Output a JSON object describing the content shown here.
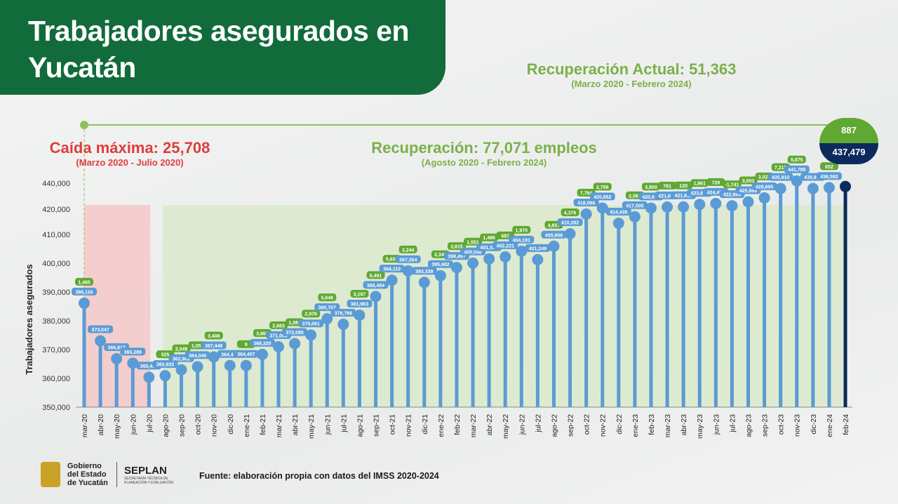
{
  "title": "Trabajadores asegurados en Yucatán",
  "recovery_actual": {
    "label": "Recuperación Actual: 51,363",
    "period": "(Marzo 2020 - Febrero 2024)"
  },
  "max_drop": {
    "label": "Caída máxima: 25,708",
    "period": "(Marzo 2020 - Julio 2020)"
  },
  "recovery": {
    "label": "Recuperación: 77,071 empleos",
    "period": "(Agosto 2020 - Febrero 2024)"
  },
  "last_bubble": {
    "change": "887",
    "value": "437,479"
  },
  "source": "Fuente: elaboración propia con datos del IMSS 2020-2024",
  "logos": {
    "gobierno": "Gobierno del Estado de Yucatán",
    "seplan": "SEPLAN",
    "seplan_sub": "SECRETARÍA TÉCNICA DE PLANEACIÓN Y EVALUACIÓN"
  },
  "colors": {
    "header": "#116b3a",
    "stem": "#5b9bd5",
    "last": "#0d2a5c",
    "change_pill": "#5fa832",
    "drop": "#e03c3c",
    "recovery_text": "#7bb04a",
    "drop_zone": "#f5c5c5",
    "recovery_zone": "#d9e8c9"
  },
  "chart_data": {
    "type": "lollipop",
    "ylabel": "Trabajadores asegurados",
    "yticks": [
      350000,
      360000,
      370000,
      380000,
      390000,
      400000,
      410000,
      420000,
      440000
    ],
    "ytick_labels": [
      "350,000",
      "360,000",
      "370,000",
      "380,000",
      "390,000",
      "400,000",
      "410,000",
      "420,000",
      "440,000"
    ],
    "categories": [
      "mar-20",
      "abr-20",
      "may-20",
      "jun-20",
      "jul-20",
      "ago-20",
      "sep-20",
      "oct-20",
      "nov-20",
      "dic-20",
      "ene-21",
      "feb-21",
      "mar-21",
      "abr-21",
      "may-21",
      "jun-21",
      "jul-21",
      "ago-21",
      "sep-21",
      "oct-21",
      "nov-21",
      "dic-21",
      "ene-22",
      "feb-22",
      "mar-22",
      "abr-22",
      "may-22",
      "jun-22",
      "jul-22",
      "ago-22",
      "sep-22",
      "oct-22",
      "nov-22",
      "dic-22",
      "ene-23",
      "feb-23",
      "mar-23",
      "abr-23",
      "may-23",
      "jun-23",
      "jul-23",
      "ago-23",
      "sep-23",
      "oct-23",
      "nov-23",
      "dic-23",
      "ene-24",
      "feb-24"
    ],
    "values": [
      386116,
      373047,
      366817,
      365288,
      360408,
      360933,
      362982,
      364040,
      367448,
      364449,
      364457,
      368320,
      371003,
      372085,
      375061,
      380707,
      378766,
      381963,
      388454,
      394110,
      397354,
      393339,
      395682,
      398497,
      400048,
      401534,
      402221,
      404191,
      401249,
      405906,
      410282,
      418066,
      420862,
      414439,
      417005,
      420905,
      421696,
      421816,
      423677,
      424406,
      422665,
      425668,
      428695,
      435910,
      441785,
      435940,
      436592,
      437479
    ],
    "value_labels": [
      "386,116",
      "373,047",
      "366,817",
      "365,288",
      "360,408",
      "360,933",
      "362,982",
      "364,040",
      "367,448",
      "364,449",
      "364,457",
      "368,320",
      "371,003",
      "372,085",
      "375,061",
      "380,707",
      "378,766",
      "381,963",
      "388,454",
      "394,110",
      "397,354",
      "393,339",
      "395,682",
      "398,497",
      "400,048",
      "401,534",
      "402,221",
      "404,191",
      "401,249",
      "405,906",
      "410,282",
      "418,066",
      "420,862",
      "414,439",
      "417,005",
      "420,905",
      "421,696",
      "421,816",
      "423,677",
      "424,406",
      "422,665",
      "425,668",
      "428,695",
      "435,910",
      "441,785",
      "435,940",
      "436,592",
      ""
    ],
    "change_labels": [
      "1,465",
      "",
      "",
      "",
      "",
      "525",
      "2,049",
      "1,058",
      "3,408",
      "",
      "8",
      "3,863",
      "2,683",
      "1,082",
      "2,976",
      "5,646",
      "",
      "3,197",
      "6,491",
      "5,656",
      "3,244",
      "",
      "2,343",
      "2,815",
      "1,551",
      "1,486",
      "687",
      "1,970",
      "",
      "4,657",
      "4,376",
      "7,784",
      "2,796",
      "",
      "2,566",
      "3,900",
      "791",
      "120",
      "1,861",
      "729",
      "-1,741",
      "3,003",
      "3,027",
      "7,215",
      "5,875",
      "",
      "652",
      ""
    ]
  }
}
